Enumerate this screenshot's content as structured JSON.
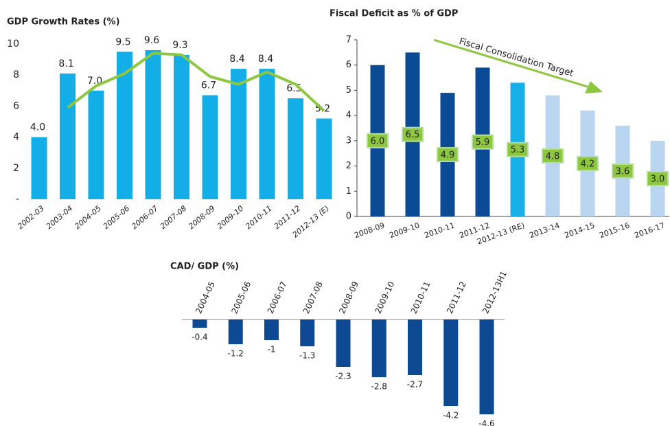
{
  "chart_data": [
    {
      "type": "bar",
      "title": "GDP Growth Rates (%)",
      "categories": [
        "2002-03",
        "2003-04",
        "2004-05",
        "2005-06",
        "2006-07",
        "2007-08",
        "2008-09",
        "2009-10",
        "2010-11",
        "2011-12",
        "2012-13 (E)"
      ],
      "series": [
        {
          "type": "bar",
          "color": "#13aee8",
          "values": [
            4.0,
            8.1,
            7.0,
            9.5,
            9.6,
            9.3,
            6.7,
            8.4,
            8.4,
            6.5,
            5.2
          ],
          "value_labels": [
            "4.0",
            "8.1",
            "7.0",
            "9.5",
            "9.6",
            "9.3",
            "6.7",
            "8.4",
            "8.4",
            "6.5",
            "5.2"
          ]
        },
        {
          "type": "line",
          "color": "#8dc63f",
          "values": [
            null,
            5.9,
            7.3,
            8.1,
            9.4,
            9.3,
            7.9,
            7.4,
            8.2,
            7.4,
            5.7
          ]
        }
      ],
      "ylim": [
        0,
        10
      ],
      "yticks": [
        {
          "value": 0,
          "label": "-"
        },
        2,
        4,
        6,
        8,
        10
      ]
    },
    {
      "type": "bar",
      "title": "Fiscal Deficit as % of GDP",
      "categories": [
        "2008-09",
        "2009-10",
        "2010-11",
        "2011-12",
        "2012-13 (RE)",
        "2013-14",
        "2014-15",
        "2015-16",
        "2016-17"
      ],
      "values": [
        6.0,
        6.5,
        4.9,
        5.9,
        5.3,
        4.8,
        4.2,
        3.6,
        3.0
      ],
      "value_labels": [
        "6.0",
        "6.5",
        "4.9",
        "5.9",
        "5.3",
        "4.8",
        "4.2",
        "3.6",
        "3.0"
      ],
      "colors": [
        "#0b4a94",
        "#0b4a94",
        "#0b4a94",
        "#0b4a94",
        "#18b0e8",
        "#bad5ef",
        "#bad5ef",
        "#bad5ef",
        "#bad5ef"
      ],
      "label_color": "#8dc63f",
      "annotation": "Fiscal Consolidation Target",
      "ylim": [
        0,
        7
      ],
      "yticks": [
        0,
        1,
        2,
        3,
        4,
        5,
        6,
        7
      ]
    },
    {
      "type": "bar",
      "title": "CAD/ GDP (%)",
      "categories": [
        "2004-05",
        "2005-06",
        "2006-07",
        "2007-08",
        "2008-09",
        "2009-10",
        "2010-11",
        "2011-12",
        "2012-13H1"
      ],
      "values": [
        -0.4,
        -1.2,
        -1,
        -1.3,
        -2.3,
        -2.8,
        -2.7,
        -4.2,
        -4.6
      ],
      "color": "#0d4a93"
    }
  ]
}
